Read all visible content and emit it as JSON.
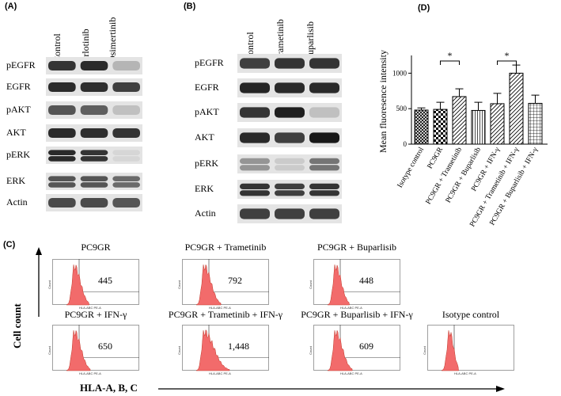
{
  "panelA": {
    "label": "(A)",
    "columns": [
      "Control",
      "Erlotinib",
      "Osimertinib"
    ],
    "rows": [
      "pEGFR",
      "EGFR",
      "pAKT",
      "AKT",
      "pERK",
      "ERK",
      "Actin"
    ]
  },
  "panelB": {
    "label": "(B)",
    "columns": [
      "Control",
      "Trametinib",
      "Buparlisib"
    ],
    "rows": [
      "pEGFR",
      "EGFR",
      "pAKT",
      "AKT",
      "pERK",
      "ERK",
      "Actin"
    ]
  },
  "panelC": {
    "label": "(C)",
    "ylabel": "Cell count",
    "xlabel": "HLA-A, B, C",
    "axis_x_text": "HLA-ABC PE-A",
    "axis_y_text": "Count",
    "plots": [
      {
        "title": "PC9GR",
        "value": "445"
      },
      {
        "title": "PC9GR + Trametinib",
        "value": "792"
      },
      {
        "title": "PC9GR + Buparlisib",
        "value": "448"
      },
      {
        "title": "PC9GR + IFN-γ",
        "value": "650"
      },
      {
        "title": "PC9GR + Trametinib + IFN-γ",
        "value": "1,448"
      },
      {
        "title": "PC9GR + Buparlisib + IFN-γ",
        "value": "609"
      },
      {
        "title": "Isotype control",
        "value": ""
      }
    ]
  },
  "panelD": {
    "label": "(D)",
    "significance": [
      "*",
      "*"
    ]
  },
  "chart_data": {
    "type": "bar",
    "title": "",
    "xlabel": "",
    "ylabel": "Mean fluoresence intensity",
    "ylim": [
      0,
      1250
    ],
    "yticks": [
      0,
      500,
      1000
    ],
    "categories": [
      "Isotype control",
      "PC9GR",
      "PC9GR + Trametinib",
      "PC9GR + Buparlisib",
      "PC9GR + IFN-γ",
      "PC9GR + Trametinib + IFN-γ",
      "PC9GR + Buparlisib + IFN-γ"
    ],
    "values": [
      480,
      490,
      670,
      475,
      570,
      1000,
      575
    ],
    "errors": [
      30,
      100,
      110,
      115,
      145,
      115,
      115
    ],
    "patterns": [
      "crosshatch-diag",
      "checker",
      "diag",
      "vertical",
      "diag",
      "diag",
      "grid"
    ],
    "grid": false
  }
}
